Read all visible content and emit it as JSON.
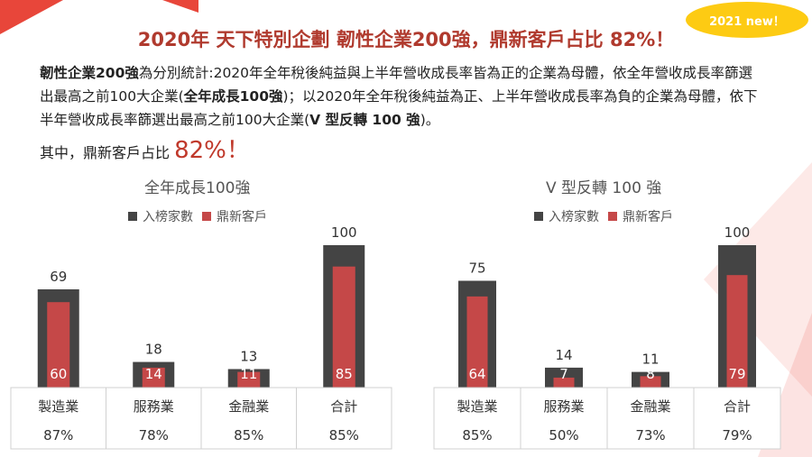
{
  "badge": "2021 new！",
  "title": "2020年 天下特別企劃 韌性企業200強，鼎新客戶占比 82%！",
  "description": {
    "p1_bold": "韌性企業200強",
    "p1": "為分別統計:2020年全年稅後純益與上半年營收成長率皆為正的企業為母體，依全年營收成長率篩選出最高之前100大企業(",
    "p2_bold": "全年成長100強",
    "p2": ")；以2020年全年稅後純益為正、上半年營收成長率為負的企業為母體，依下半年營收成長率篩選出最高之前100大企業(",
    "p3_bold": "V 型反轉 100 強",
    "p3": ")。"
  },
  "share": {
    "label": "其中，鼎新客戶占比 ",
    "value": "82%",
    "suffix": "！"
  },
  "colors": {
    "total": "#444444",
    "client": "#c54848",
    "accent": "#b03a2e",
    "badge": "#fdcb13"
  },
  "chart_data": [
    {
      "type": "bar",
      "title": "全年成長100強",
      "legend": [
        "入榜家數",
        "鼎新客戶"
      ],
      "categories": [
        "製造業",
        "服務業",
        "金融業",
        "合計"
      ],
      "series": [
        {
          "name": "入榜家數",
          "values": [
            69,
            18,
            13,
            100
          ]
        },
        {
          "name": "鼎新客戶",
          "values": [
            60,
            14,
            11,
            85
          ]
        }
      ],
      "percentages": [
        "87%",
        "78%",
        "85%",
        "85%"
      ],
      "ylim": [
        0,
        100
      ],
      "legend_position": "top"
    },
    {
      "type": "bar",
      "title": "V 型反轉 100 強",
      "legend": [
        "入榜家數",
        "鼎新客戶"
      ],
      "categories": [
        "製造業",
        "服務業",
        "金融業",
        "合計"
      ],
      "series": [
        {
          "name": "入榜家數",
          "values": [
            75,
            14,
            11,
            100
          ]
        },
        {
          "name": "鼎新客戶",
          "values": [
            64,
            7,
            8,
            79
          ]
        }
      ],
      "percentages": [
        "85%",
        "50%",
        "73%",
        "79%"
      ],
      "ylim": [
        0,
        100
      ],
      "legend_position": "top"
    }
  ]
}
